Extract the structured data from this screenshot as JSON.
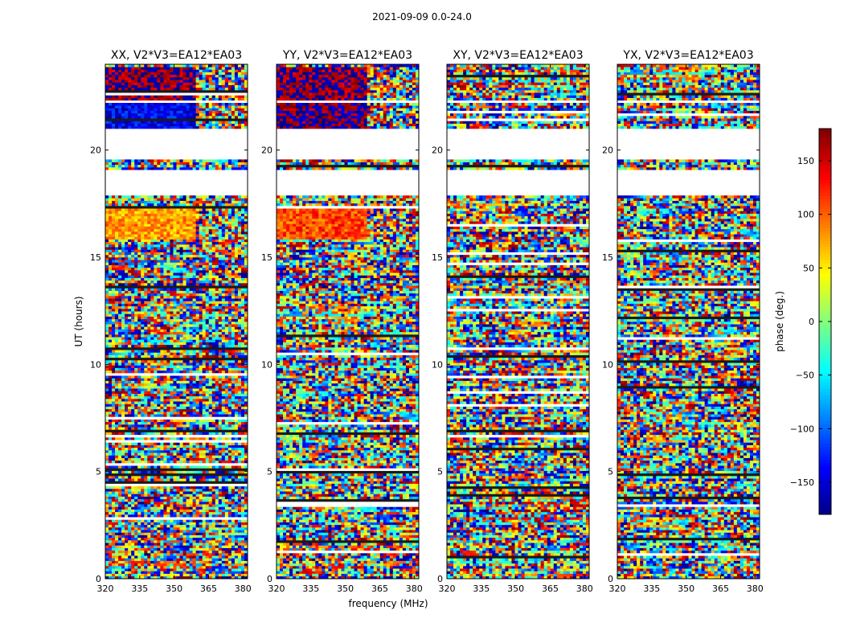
{
  "figure": {
    "suptitle": "2021-09-09 0.0-24.0"
  },
  "chart_data": [
    {
      "type": "heatmap",
      "title": "XX, V2*V3=EA12*EA03",
      "xlabel": "frequency (MHz)",
      "ylabel": "UT (hours)",
      "xlim": [
        320,
        382
      ],
      "ylim": [
        0,
        24
      ],
      "xticks": [
        320,
        335,
        350,
        365,
        380
      ],
      "yticks": [
        0,
        5,
        10,
        15,
        20
      ],
      "yticklabels": [
        "0",
        "5",
        "10",
        "15",
        "20"
      ],
      "xticklabels": [
        "320",
        "335",
        "350",
        "365",
        "380"
      ],
      "coherent_bands": [
        {
          "from": 21.0,
          "to": 22.2,
          "left_phase": -140,
          "right_phase": 150
        },
        {
          "from": 22.3,
          "to": 23.9,
          "left_phase": 175,
          "right_phase": 140
        },
        {
          "from": 15.8,
          "to": 17.3,
          "left_phase": 80,
          "right_phase": 100
        }
      ],
      "gaps": [
        [
          19.6,
          21.0
        ],
        [
          17.9,
          19.1
        ],
        [
          22.2,
          22.35
        ]
      ]
    },
    {
      "type": "heatmap",
      "title": "YY, V2*V3=EA12*EA03",
      "xlabel": "",
      "ylabel": "",
      "xlim": [
        320,
        382
      ],
      "ylim": [
        0,
        24
      ],
      "xticks": [
        320,
        335,
        350,
        365,
        380
      ],
      "yticks": [
        0,
        5,
        10,
        15,
        20
      ],
      "yticklabels": [
        "0",
        "5",
        "10",
        "15",
        "20"
      ],
      "xticklabels": [
        "320",
        "335",
        "350",
        "365",
        "380"
      ],
      "coherent_bands": [
        {
          "from": 21.0,
          "to": 22.2,
          "left_phase": -175,
          "right_phase": 160
        },
        {
          "from": 22.3,
          "to": 23.9,
          "left_phase": 175,
          "right_phase": 150
        },
        {
          "from": 15.8,
          "to": 17.3,
          "left_phase": 110,
          "right_phase": 120
        }
      ],
      "gaps": [
        [
          19.6,
          21.0
        ],
        [
          17.9,
          19.1
        ],
        [
          22.2,
          22.35
        ]
      ]
    },
    {
      "type": "heatmap",
      "title": "XY, V2*V3=EA12*EA03",
      "xlabel": "",
      "ylabel": "",
      "xlim": [
        320,
        382
      ],
      "ylim": [
        0,
        24
      ],
      "xticks": [
        320,
        335,
        350,
        365,
        380
      ],
      "yticks": [
        0,
        5,
        10,
        15,
        20
      ],
      "yticklabels": [
        "0",
        "5",
        "10",
        "15",
        "20"
      ],
      "xticklabels": [
        "320",
        "335",
        "350",
        "365",
        "380"
      ],
      "coherent_bands": [],
      "gaps": [
        [
          19.6,
          21.0
        ],
        [
          17.9,
          19.1
        ],
        [
          22.2,
          22.35
        ]
      ]
    },
    {
      "type": "heatmap",
      "title": "YX, V2*V3=EA12*EA03",
      "xlabel": "",
      "ylabel": "",
      "xlim": [
        320,
        382
      ],
      "ylim": [
        0,
        24
      ],
      "xticks": [
        320,
        335,
        350,
        365,
        380
      ],
      "yticks": [
        0,
        5,
        10,
        15,
        20
      ],
      "yticklabels": [
        "0",
        "5",
        "10",
        "15",
        "20"
      ],
      "xticklabels": [
        "320",
        "335",
        "350",
        "365",
        "380"
      ],
      "coherent_bands": [],
      "gaps": [
        [
          19.6,
          21.0
        ],
        [
          17.9,
          19.1
        ],
        [
          22.2,
          22.35
        ]
      ]
    }
  ],
  "colorbar": {
    "label": "phase (deg.)",
    "range": [
      -180,
      180
    ],
    "ticks": [
      150,
      100,
      50,
      0,
      -50,
      -100,
      -150
    ],
    "ticklabels": [
      "150",
      "100",
      "50",
      "0",
      "−50",
      "−100",
      "−150"
    ],
    "colormap": "jet"
  }
}
